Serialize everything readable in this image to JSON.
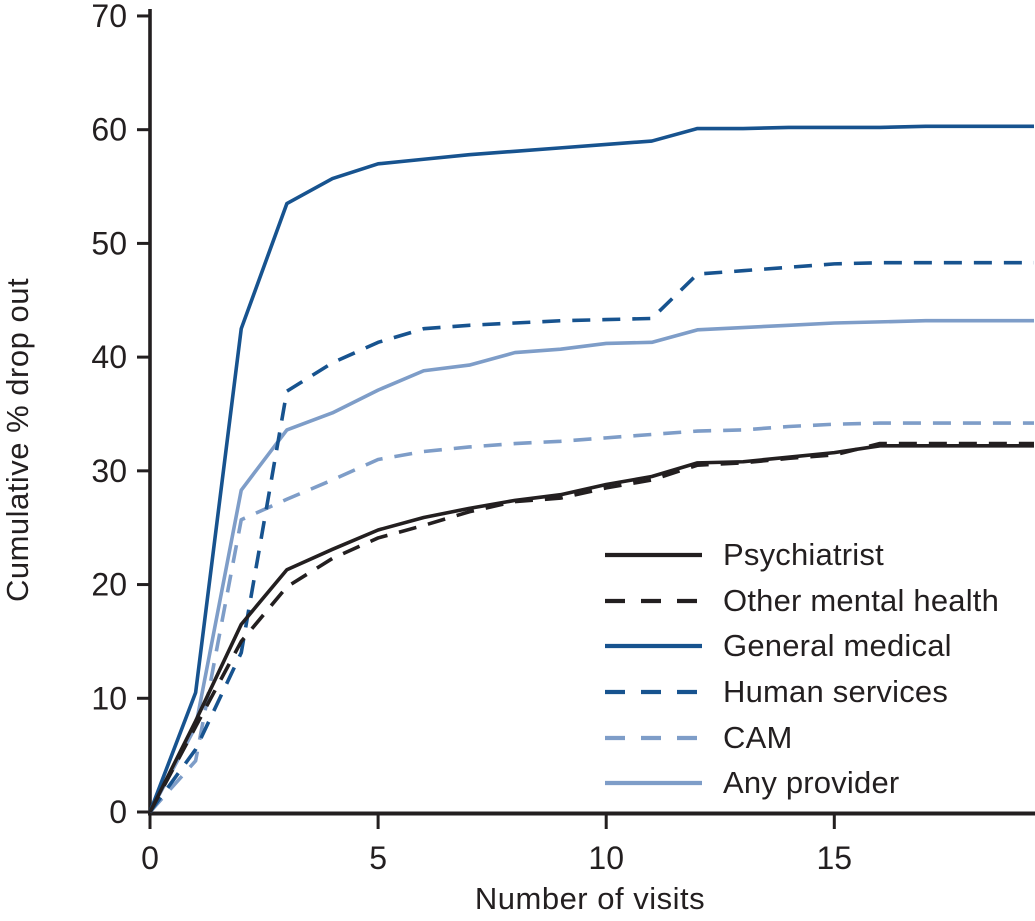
{
  "chart_data": {
    "type": "line",
    "title": "",
    "xlabel": "Number of visits",
    "ylabel": "Cumulative % drop out",
    "xlim": [
      0,
      19.4
    ],
    "ylim": [
      0,
      70
    ],
    "xticks": [
      0,
      5,
      10,
      15
    ],
    "yticks": [
      0,
      10,
      20,
      30,
      40,
      50,
      60,
      70
    ],
    "grid": false,
    "legend_position": "lower right",
    "axis_color": "#231f20",
    "x": [
      0,
      1,
      2,
      3,
      4,
      5,
      6,
      7,
      8,
      9,
      10,
      11,
      12,
      13,
      14,
      15,
      16,
      17,
      18,
      19
    ],
    "series": [
      {
        "name": "Psychiatrist",
        "style": "solid",
        "color": "#231f20",
        "values": [
          0,
          8.0,
          16.5,
          21.3,
          23.1,
          24.8,
          25.9,
          26.7,
          27.4,
          27.9,
          28.8,
          29.5,
          30.7,
          30.8,
          31.2,
          31.6,
          32.2,
          32.2,
          32.2,
          32.2
        ]
      },
      {
        "name": "Other mental health",
        "style": "dashed",
        "color": "#231f20",
        "values": [
          0,
          7.5,
          15.0,
          19.8,
          22.3,
          24.1,
          25.2,
          26.4,
          27.3,
          27.6,
          28.5,
          29.2,
          30.5,
          30.7,
          31.1,
          31.4,
          32.4,
          32.4,
          32.4,
          32.4
        ]
      },
      {
        "name": "General medical",
        "style": "solid",
        "color": "#17538f",
        "values": [
          0,
          10.5,
          42.5,
          53.5,
          55.7,
          57.0,
          57.4,
          57.8,
          58.1,
          58.4,
          58.7,
          59.0,
          60.1,
          60.1,
          60.2,
          60.2,
          60.2,
          60.3,
          60.3,
          60.3
        ]
      },
      {
        "name": "Human services",
        "style": "dashed",
        "color": "#17538f",
        "values": [
          0,
          5.5,
          14.0,
          37.0,
          39.5,
          41.3,
          42.5,
          42.8,
          43.0,
          43.2,
          43.3,
          43.4,
          47.3,
          47.6,
          47.9,
          48.2,
          48.3,
          48.3,
          48.3,
          48.3
        ]
      },
      {
        "name": "CAM",
        "style": "dashed",
        "color": "#7e9dc8",
        "values": [
          0,
          4.5,
          25.7,
          27.5,
          29.2,
          31.0,
          31.7,
          32.1,
          32.4,
          32.6,
          32.9,
          33.2,
          33.5,
          33.6,
          33.9,
          34.1,
          34.2,
          34.2,
          34.2,
          34.2
        ]
      },
      {
        "name": "Any provider",
        "style": "solid",
        "color": "#7e9dc8",
        "values": [
          0,
          7.5,
          28.3,
          33.6,
          35.1,
          37.1,
          38.8,
          39.3,
          40.4,
          40.7,
          41.2,
          41.3,
          42.4,
          42.6,
          42.8,
          43.0,
          43.1,
          43.2,
          43.2,
          43.2
        ]
      }
    ]
  }
}
